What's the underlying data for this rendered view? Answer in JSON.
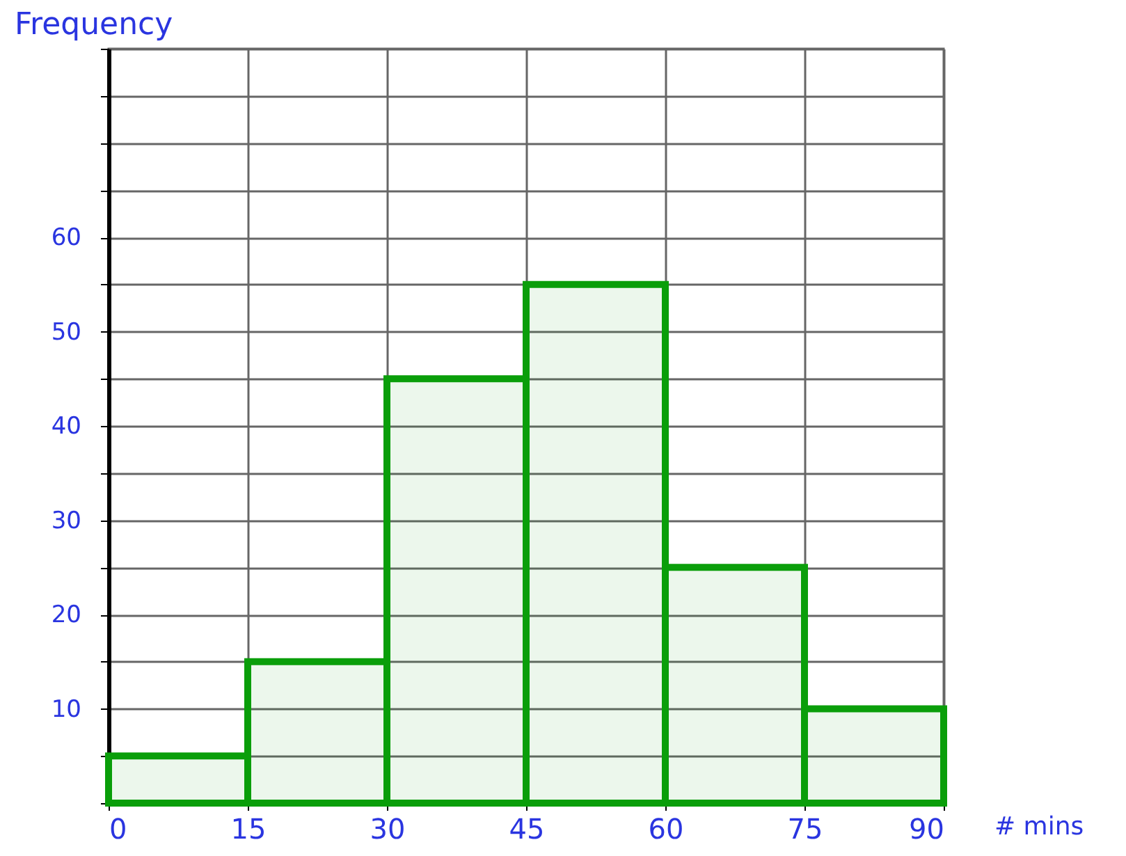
{
  "chart_data": {
    "type": "histogram",
    "xlabel": "# mins",
    "ylabel": "Frequency",
    "bins": [
      0,
      15,
      30,
      45,
      60,
      75,
      90
    ],
    "values": [
      5,
      15,
      45,
      55,
      25,
      10
    ],
    "color": "#0a9e0a",
    "xlim": [
      0,
      90
    ],
    "xticks": [
      0,
      15,
      30,
      45,
      60,
      75,
      90
    ],
    "ylim": [
      0,
      80
    ],
    "yticks": [
      {
        "value": 0,
        "label": null
      },
      {
        "value": 5,
        "label": null
      },
      10,
      {
        "value": 15,
        "label": null
      },
      20,
      {
        "value": 25,
        "label": null
      },
      30,
      {
        "value": 35,
        "label": null
      },
      40,
      {
        "value": 45,
        "label": null
      },
      50,
      {
        "value": 55,
        "label": null
      },
      60,
      {
        "value": 65,
        "label": null
      },
      {
        "value": 70,
        "label": null
      },
      {
        "value": 75,
        "label": null
      },
      {
        "value": 80,
        "label": null
      }
    ],
    "grid": true
  }
}
